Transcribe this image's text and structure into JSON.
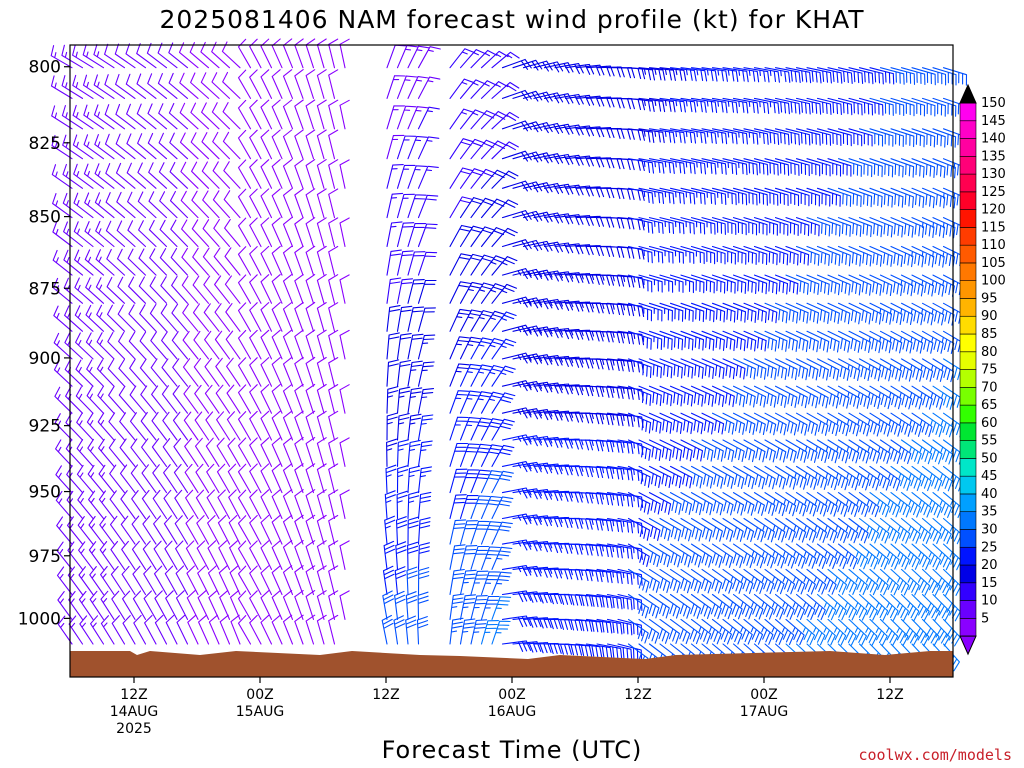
{
  "chart_data": {
    "type": "wind-barb-profile",
    "title": "2025081406 NAM forecast wind profile (kt) for KHAT",
    "xlabel": "Forecast Time (UTC)",
    "ylabel": "",
    "y_scale": "log-pressure",
    "y_ticks": [
      "800",
      "825",
      "850",
      "875",
      "900",
      "925",
      "950",
      "975",
      "1000"
    ],
    "x_ticks": [
      {
        "hour": 12,
        "l1": "12Z",
        "l2": "14AUG",
        "l3": "2025"
      },
      {
        "hour": 24,
        "l1": "00Z",
        "l2": "15AUG",
        "l3": ""
      },
      {
        "hour": 36,
        "l1": "12Z",
        "l2": "",
        "l3": ""
      },
      {
        "hour": 48,
        "l1": "00Z",
        "l2": "16AUG",
        "l3": ""
      },
      {
        "hour": 60,
        "l1": "12Z",
        "l2": "",
        "l3": ""
      },
      {
        "hour": 72,
        "l1": "00Z",
        "l2": "17AUG",
        "l3": ""
      },
      {
        "hour": 84,
        "l1": "12Z",
        "l2": "",
        "l3": ""
      }
    ],
    "colorbar": {
      "labels": [
        "5",
        "10",
        "15",
        "20",
        "25",
        "30",
        "35",
        "40",
        "45",
        "50",
        "55",
        "60",
        "65",
        "70",
        "75",
        "80",
        "85",
        "90",
        "95",
        "100",
        "105",
        "110",
        "115",
        "120",
        "125",
        "130",
        "135",
        "140",
        "145",
        "150"
      ],
      "colors": [
        "#8a00ff",
        "#6a00ff",
        "#3200ff",
        "#0000e6",
        "#0014ff",
        "#0050ff",
        "#0078ff",
        "#00a0ff",
        "#00c8f0",
        "#00e6c8",
        "#00e678",
        "#00e632",
        "#32ff00",
        "#78ff00",
        "#b4ff00",
        "#e6ff00",
        "#ffff00",
        "#ffdc00",
        "#ffb400",
        "#ff9600",
        "#ff7800",
        "#ff5a00",
        "#ff3c00",
        "#ff1400",
        "#ff0028",
        "#ff0050",
        "#ff0078",
        "#ff00a0",
        "#ff00c8",
        "#ff00f0"
      ]
    },
    "terrain_color": "#a0522d"
  },
  "credit": "coolwx.com/models"
}
